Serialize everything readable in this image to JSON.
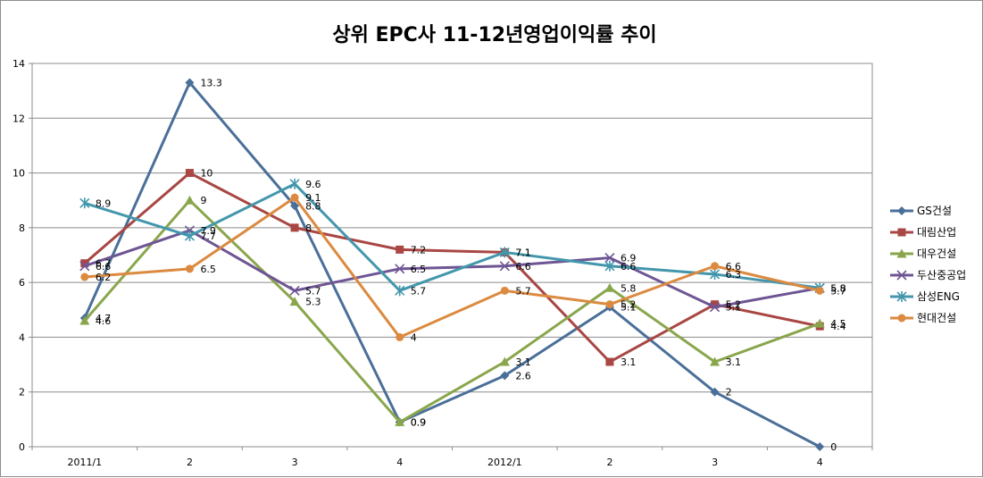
{
  "chart_data": {
    "type": "line",
    "title": "상위 EPC사 11-12년영업이익률 추이",
    "xlabel": "",
    "ylabel": "",
    "categories": [
      "2011/1",
      "2",
      "3",
      "4",
      "2012/1",
      "2",
      "3",
      "4"
    ],
    "ylim": [
      0,
      14
    ],
    "yticks": [
      0,
      2,
      4,
      6,
      8,
      10,
      12,
      14
    ],
    "grid": true,
    "legend_position": "right",
    "series": [
      {
        "name": "GS건설",
        "color": "#4a6f98",
        "marker": "diamond",
        "values": [
          4.7,
          13.3,
          8.8,
          0.9,
          2.6,
          5.1,
          2,
          0
        ]
      },
      {
        "name": "대림산업",
        "color": "#a84744",
        "marker": "square",
        "values": [
          6.7,
          10,
          8,
          7.2,
          7.1,
          3.1,
          5.2,
          4.4
        ]
      },
      {
        "name": "대우건설",
        "color": "#8aa64c",
        "marker": "triangle",
        "values": [
          4.6,
          9,
          5.3,
          0.9,
          3.1,
          5.8,
          3.1,
          4.5
        ]
      },
      {
        "name": "두산중공업",
        "color": "#6e5594",
        "marker": "x",
        "values": [
          6.6,
          7.9,
          5.7,
          6.5,
          6.6,
          6.9,
          5.1,
          5.8
        ]
      },
      {
        "name": "삼성ENG",
        "color": "#4397ac",
        "marker": "star",
        "values": [
          8.9,
          7.7,
          9.6,
          5.7,
          7.1,
          6.6,
          6.3,
          5.8
        ]
      },
      {
        "name": "현대건설",
        "color": "#db8a3f",
        "marker": "circle",
        "values": [
          6.2,
          6.5,
          9.1,
          4,
          5.7,
          5.2,
          6.6,
          5.7
        ]
      }
    ]
  }
}
